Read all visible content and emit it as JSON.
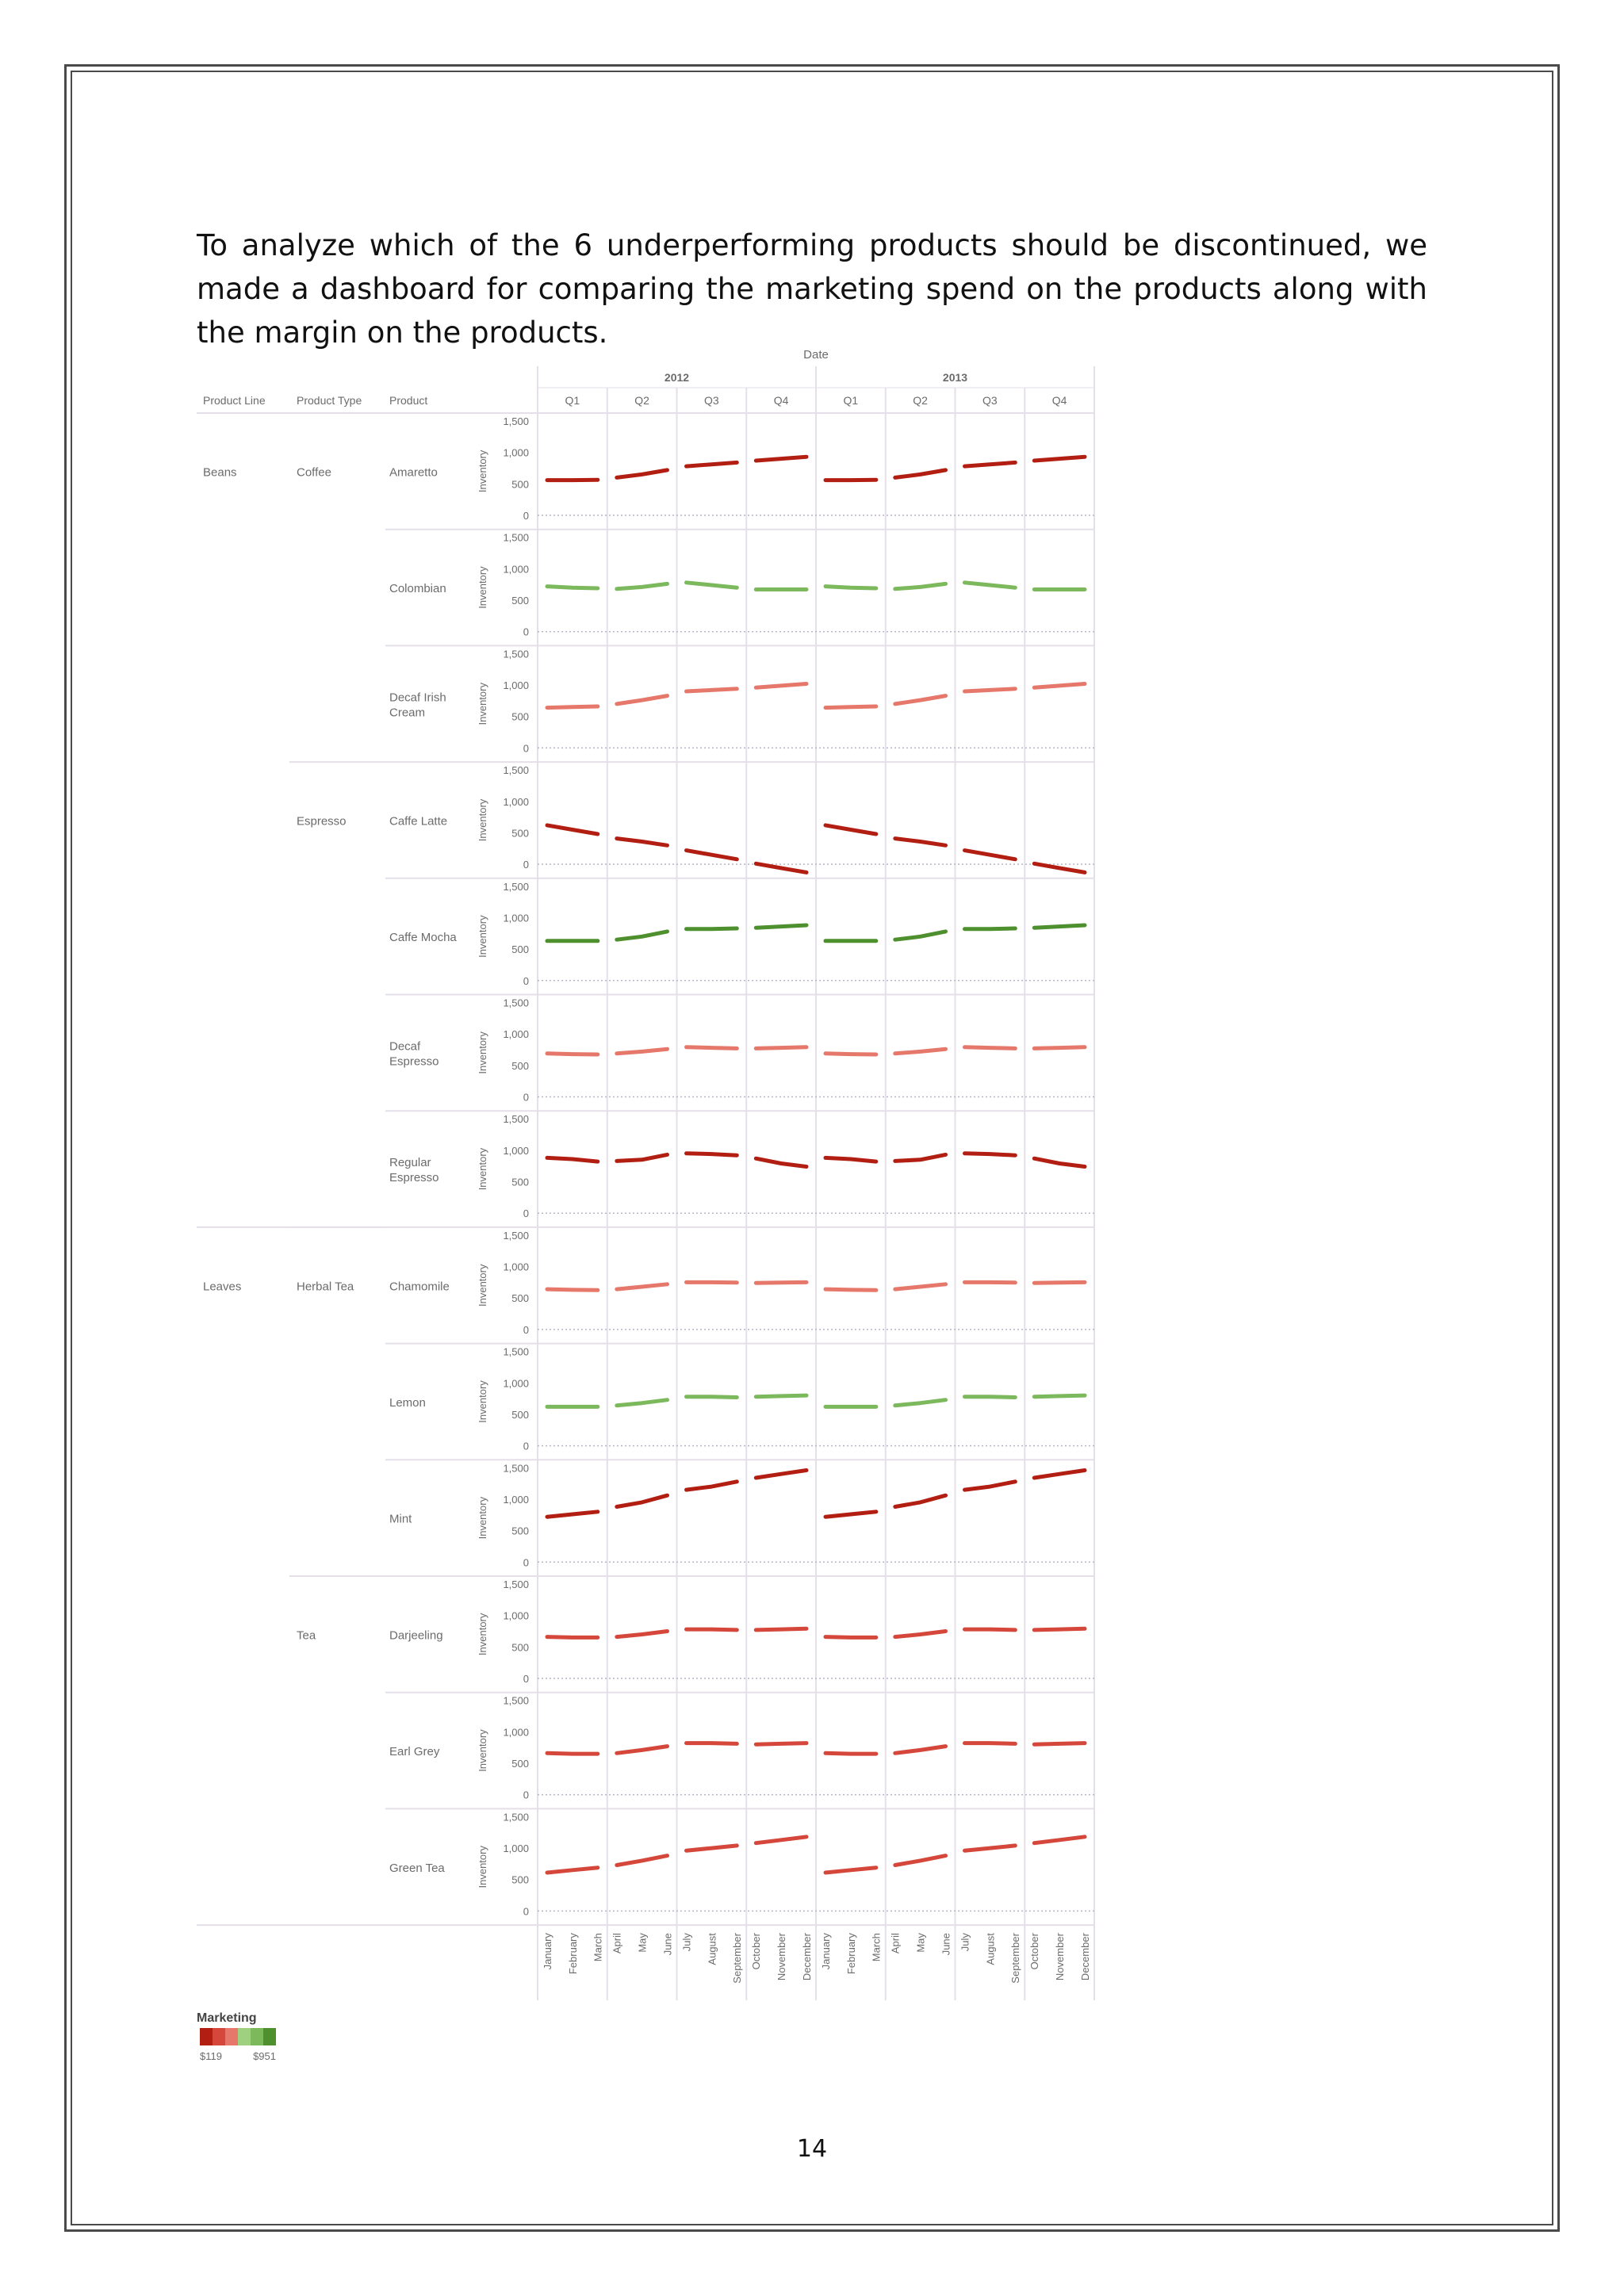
{
  "page": {
    "intro": "To analyze which of the 6 underperforming products should be discontinued, we made a dashboard for comparing the marketing spend on the products along with the margin on the products.",
    "page_number": "14"
  },
  "chart_data": {
    "type": "line",
    "title": "Date",
    "ylabel": "Inventory",
    "row_headers": [
      "Product Line",
      "Product Type",
      "Product"
    ],
    "years": [
      "2012",
      "2013"
    ],
    "quarters": [
      "Q1",
      "Q2",
      "Q3",
      "Q4"
    ],
    "months": [
      "January",
      "February",
      "March",
      "April",
      "May",
      "June",
      "July",
      "August",
      "September",
      "October",
      "November",
      "December"
    ],
    "y_ticks": [
      "1,500",
      "1,000",
      "500",
      "0"
    ],
    "ylim": [
      0,
      1500
    ],
    "grid": "dotted zero line per pane",
    "product_lines": [
      {
        "name": "Beans",
        "types": [
          {
            "name": "Coffee",
            "products": [
              0,
              1,
              2
            ]
          },
          {
            "name": "Espresso",
            "products": [
              3,
              4,
              5,
              6
            ]
          }
        ]
      },
      {
        "name": "Leaves",
        "types": [
          {
            "name": "Herbal Tea",
            "products": [
              7,
              8,
              9
            ]
          },
          {
            "name": "Tea",
            "products": [
              10,
              11,
              12
            ]
          }
        ]
      }
    ],
    "series": [
      {
        "name": "Amaretto",
        "color": "#b21f12",
        "values": [
          560,
          560,
          565,
          600,
          650,
          720,
          780,
          810,
          840,
          870,
          900,
          930,
          560,
          560,
          565,
          600,
          650,
          720,
          780,
          810,
          840,
          870,
          900,
          930
        ]
      },
      {
        "name": "Colombian",
        "color": "#7cb85c",
        "values": [
          720,
          700,
          690,
          680,
          710,
          760,
          780,
          740,
          700,
          670,
          670,
          670,
          720,
          700,
          690,
          680,
          710,
          760,
          780,
          740,
          700,
          670,
          670,
          670
        ]
      },
      {
        "name": "Decaf Irish Cream",
        "color": "#e5786a",
        "values": [
          640,
          650,
          660,
          700,
          760,
          830,
          900,
          920,
          940,
          960,
          990,
          1020,
          640,
          650,
          660,
          700,
          760,
          830,
          900,
          920,
          940,
          960,
          990,
          1020
        ]
      },
      {
        "name": "Caffe Latte",
        "color": "#b21f12",
        "values": [
          620,
          550,
          480,
          410,
          360,
          300,
          220,
          150,
          80,
          10,
          -60,
          -130,
          620,
          550,
          480,
          410,
          360,
          300,
          220,
          150,
          80,
          10,
          -60,
          -130
        ]
      },
      {
        "name": "Caffe Mocha",
        "color": "#4e8f2e",
        "values": [
          630,
          630,
          630,
          650,
          700,
          780,
          820,
          820,
          830,
          840,
          860,
          880,
          630,
          630,
          630,
          650,
          700,
          780,
          820,
          820,
          830,
          840,
          860,
          880
        ]
      },
      {
        "name": "Decaf Espresso",
        "color": "#e5786a",
        "values": [
          690,
          680,
          675,
          690,
          720,
          760,
          790,
          780,
          770,
          770,
          780,
          790,
          690,
          680,
          675,
          690,
          720,
          760,
          790,
          780,
          770,
          770,
          780,
          790
        ]
      },
      {
        "name": "Regular Espresso",
        "color": "#b21f12",
        "values": [
          880,
          860,
          820,
          830,
          850,
          930,
          950,
          940,
          920,
          870,
          790,
          740,
          880,
          860,
          820,
          830,
          850,
          930,
          950,
          940,
          920,
          870,
          790,
          740
        ]
      },
      {
        "name": "Chamomile",
        "color": "#e5786a",
        "values": [
          640,
          630,
          625,
          640,
          680,
          720,
          750,
          750,
          745,
          740,
          745,
          750,
          640,
          630,
          625,
          640,
          680,
          720,
          750,
          750,
          745,
          740,
          745,
          750
        ]
      },
      {
        "name": "Lemon",
        "color": "#7cb85c",
        "values": [
          620,
          620,
          620,
          640,
          680,
          730,
          780,
          780,
          770,
          780,
          790,
          800,
          620,
          620,
          620,
          640,
          680,
          730,
          780,
          780,
          770,
          780,
          790,
          800
        ]
      },
      {
        "name": "Mint",
        "color": "#b21f12",
        "values": [
          720,
          760,
          800,
          880,
          950,
          1060,
          1150,
          1200,
          1280,
          1340,
          1400,
          1460,
          720,
          760,
          800,
          880,
          950,
          1060,
          1150,
          1200,
          1280,
          1340,
          1400,
          1460
        ]
      },
      {
        "name": "Darjeeling",
        "color": "#d4473a",
        "values": [
          660,
          650,
          650,
          660,
          700,
          750,
          780,
          780,
          770,
          770,
          780,
          790,
          660,
          650,
          650,
          660,
          700,
          750,
          780,
          780,
          770,
          770,
          780,
          790
        ]
      },
      {
        "name": "Earl Grey",
        "color": "#d4473a",
        "values": [
          660,
          650,
          650,
          660,
          710,
          770,
          820,
          820,
          810,
          800,
          810,
          820,
          660,
          650,
          650,
          660,
          710,
          770,
          820,
          820,
          810,
          800,
          810,
          820
        ]
      },
      {
        "name": "Green Tea",
        "color": "#d4473a",
        "values": [
          610,
          650,
          690,
          730,
          800,
          880,
          960,
          1000,
          1040,
          1080,
          1130,
          1180,
          610,
          650,
          690,
          730,
          800,
          880,
          960,
          1000,
          1040,
          1080,
          1130,
          1180
        ]
      }
    ],
    "legend": {
      "title": "Marketing",
      "min_label": "$119",
      "max_label": "$951",
      "colors": [
        "#b21f12",
        "#d4473a",
        "#e5786a",
        "#9fd07f",
        "#7cb85c",
        "#4e8f2e"
      ]
    }
  }
}
